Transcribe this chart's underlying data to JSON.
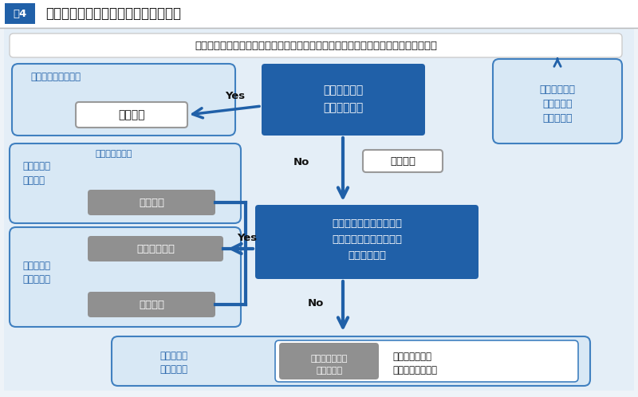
{
  "title_fig": "図4",
  "title_main": "臨床研究法を踏まえた臨床研究の分類",
  "header_text": "人を対象に医薬品・医療機器・診断薬などの効果・安全性の評価をする研究において",
  "blue_dark": "#2060a8",
  "blue_mid": "#3070b8",
  "blue_light": "#d8e8f5",
  "blue_border": "#4080c0",
  "gray_box": "#909090",
  "white": "#ffffff",
  "text_blue": "#2060a8",
  "text_dark": "#111111",
  "bg_main": "#e4eef7",
  "bg_fig": "#eef3f8",
  "title_bg": "#ffffff",
  "sep_color": "#bbbbbb",
  "kanyu_label": "臨床研究法適用する",
  "kanyu_box": "介入研究",
  "chiryo_line1": "治療の選択に",
  "chiryo_line2": "研究者が関与",
  "bubble_line1": "手術・手技の",
  "bubble_line2": "臨床研究は",
  "bubble_line3": "含まれない",
  "kansatsu": "観察研究",
  "data_line1": "研究に使用するデータは",
  "data_line2": "日常診療の範囲を超えて",
  "data_line3": "収集するか？",
  "mid_label1": "臨床研究法",
  "mid_label2": "適用する",
  "mae_kansatsu": "前向き観察研究",
  "shinshoku_ari": "侵襲あり",
  "bot_label1": "臨床研究法",
  "bot_label2": "適用しない",
  "keibi": "軽微侵襲あり",
  "shinshoku_nashi": "侵襲なし",
  "bottom_label1": "臨床研究法",
  "bottom_label2": "適用しない",
  "kison1": "既存試料のみを",
  "kison2": "用いた研究",
  "mae_kansatsu2": "前向き観察研究",
  "ushiro_kansatsu": "後ろ向き観察研究",
  "yes": "Yes",
  "no": "No"
}
